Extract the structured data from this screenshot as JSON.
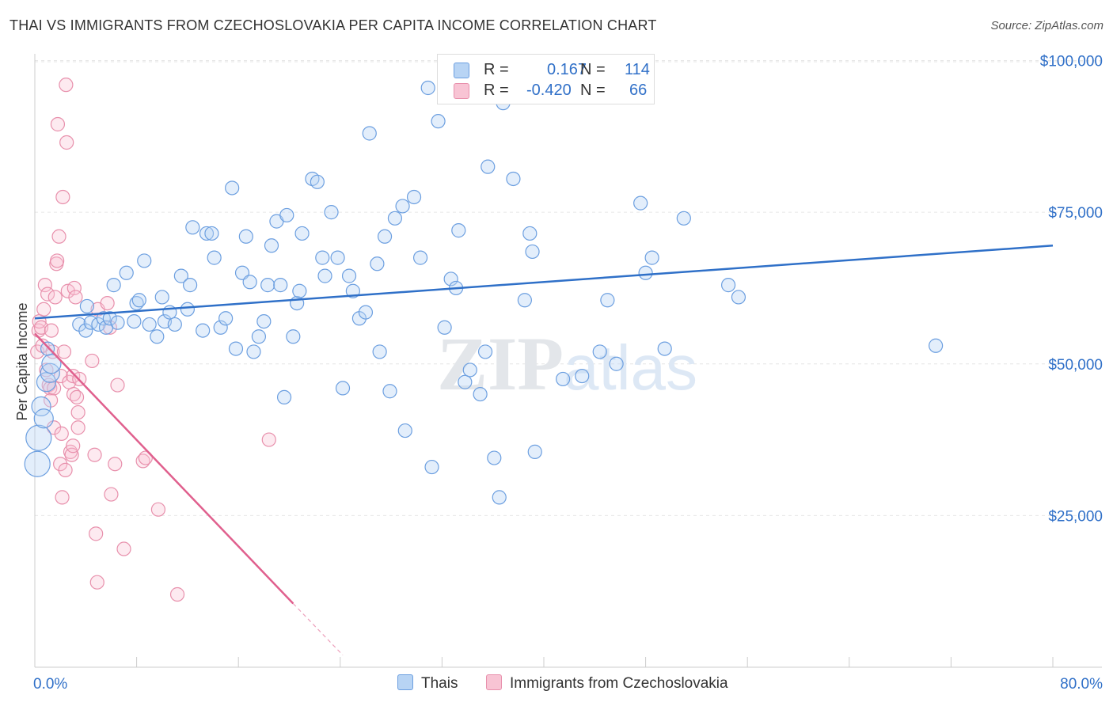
{
  "title": "THAI VS IMMIGRANTS FROM CZECHOSLOVAKIA PER CAPITA INCOME CORRELATION CHART",
  "source": "Source: ZipAtlas.com",
  "watermark": {
    "zip": "ZIP",
    "atlas": "atlas"
  },
  "legend": {
    "r_label": "R =",
    "n_label": "N =",
    "rows": [
      {
        "r": "0.167",
        "n": "114",
        "swatch_fill": "#b8d4f4",
        "swatch_stroke": "#6c9fe0"
      },
      {
        "r": "-0.420",
        "n": "66",
        "swatch_fill": "#f8c4d4",
        "swatch_stroke": "#e890ac"
      }
    ]
  },
  "bottom_legend": [
    "Thais",
    "Immigrants from Czechoslovakia"
  ],
  "chart_data": {
    "type": "scatter",
    "title": "THAI VS IMMIGRANTS FROM CZECHOSLOVAKIA PER CAPITA INCOME CORRELATION CHART",
    "xlabel": "",
    "ylabel": "Per Capita Income",
    "xlim": [
      0,
      80
    ],
    "ylim": [
      0,
      100000
    ],
    "x_tick_labels": [
      "0.0%",
      "80.0%"
    ],
    "y_tick_labels": [
      "$25,000",
      "$50,000",
      "$75,000",
      "$100,000"
    ],
    "y_ticks": [
      25000,
      50000,
      75000,
      100000
    ],
    "colors": {
      "thais": "#6c9fe0",
      "thais_line": "#2f70c8",
      "czech": "#e890ac",
      "czech_line": "#e0608e",
      "axis_text": "#3070c8"
    },
    "series": [
      {
        "name": "Thais",
        "trend": {
          "x0": 0,
          "y0": 57500,
          "x1": 80,
          "y1": 69500
        },
        "points": [
          [
            0.2,
            33500
          ],
          [
            0.3,
            37800
          ],
          [
            0.5,
            43000
          ],
          [
            0.7,
            41000
          ],
          [
            0.9,
            47000
          ],
          [
            1.0,
            52500
          ],
          [
            1.2,
            48500
          ],
          [
            1.3,
            50000
          ],
          [
            3.5,
            56500
          ],
          [
            4.0,
            55500
          ],
          [
            4.1,
            59500
          ],
          [
            4.4,
            56800
          ],
          [
            5.0,
            56500
          ],
          [
            5.4,
            57500
          ],
          [
            5.6,
            56000
          ],
          [
            5.9,
            57500
          ],
          [
            6.2,
            63000
          ],
          [
            6.5,
            56800
          ],
          [
            7.2,
            65000
          ],
          [
            7.8,
            57000
          ],
          [
            8.0,
            60000
          ],
          [
            8.2,
            60500
          ],
          [
            8.6,
            67000
          ],
          [
            9.0,
            56500
          ],
          [
            9.6,
            54500
          ],
          [
            10.0,
            61000
          ],
          [
            10.2,
            57000
          ],
          [
            10.6,
            58500
          ],
          [
            11.0,
            56500
          ],
          [
            11.5,
            64500
          ],
          [
            12.0,
            59000
          ],
          [
            12.2,
            63000
          ],
          [
            12.4,
            72500
          ],
          [
            13.2,
            55500
          ],
          [
            13.5,
            71500
          ],
          [
            13.9,
            71500
          ],
          [
            14.1,
            67500
          ],
          [
            14.6,
            56000
          ],
          [
            15.0,
            57500
          ],
          [
            15.5,
            79000
          ],
          [
            15.8,
            52500
          ],
          [
            16.3,
            65000
          ],
          [
            16.6,
            71000
          ],
          [
            16.9,
            63500
          ],
          [
            17.2,
            52000
          ],
          [
            17.6,
            54500
          ],
          [
            18.0,
            57000
          ],
          [
            18.3,
            63000
          ],
          [
            18.6,
            69500
          ],
          [
            19.0,
            73500
          ],
          [
            19.3,
            63000
          ],
          [
            19.6,
            44500
          ],
          [
            19.8,
            74500
          ],
          [
            20.3,
            54500
          ],
          [
            20.6,
            60000
          ],
          [
            20.8,
            62000
          ],
          [
            21.0,
            71500
          ],
          [
            21.8,
            80500
          ],
          [
            22.2,
            80000
          ],
          [
            22.6,
            67500
          ],
          [
            22.8,
            64500
          ],
          [
            23.3,
            75000
          ],
          [
            23.8,
            67500
          ],
          [
            24.2,
            46000
          ],
          [
            24.7,
            64500
          ],
          [
            25.0,
            62000
          ],
          [
            25.5,
            57500
          ],
          [
            26.0,
            58500
          ],
          [
            26.3,
            88000
          ],
          [
            26.9,
            66500
          ],
          [
            27.1,
            52000
          ],
          [
            27.5,
            71000
          ],
          [
            27.9,
            45500
          ],
          [
            28.3,
            74000
          ],
          [
            28.9,
            76000
          ],
          [
            29.1,
            39000
          ],
          [
            29.8,
            77500
          ],
          [
            30.3,
            67500
          ],
          [
            30.9,
            95500
          ],
          [
            31.2,
            33000
          ],
          [
            31.7,
            90000
          ],
          [
            32.2,
            56000
          ],
          [
            32.7,
            64000
          ],
          [
            33.1,
            62500
          ],
          [
            33.3,
            72000
          ],
          [
            33.8,
            47000
          ],
          [
            34.2,
            49000
          ],
          [
            35.0,
            45000
          ],
          [
            35.4,
            52000
          ],
          [
            35.6,
            82500
          ],
          [
            36.1,
            34500
          ],
          [
            36.5,
            28000
          ],
          [
            36.8,
            93000
          ],
          [
            37.6,
            80500
          ],
          [
            38.5,
            60500
          ],
          [
            38.9,
            71500
          ],
          [
            39.1,
            68500
          ],
          [
            39.3,
            35500
          ],
          [
            41.5,
            47500
          ],
          [
            43.0,
            48000
          ],
          [
            44.4,
            52000
          ],
          [
            45.0,
            60500
          ],
          [
            45.7,
            50000
          ],
          [
            47.6,
            76500
          ],
          [
            48.0,
            65000
          ],
          [
            48.5,
            67500
          ],
          [
            49.5,
            52500
          ],
          [
            51.0,
            74000
          ],
          [
            54.5,
            63000
          ],
          [
            55.3,
            61000
          ],
          [
            70.8,
            53000
          ]
        ]
      },
      {
        "name": "Immigrants from Czechoslovakia",
        "trend": {
          "x0": 0,
          "y0": 55000,
          "x1": 20.3,
          "y1": 10500
        },
        "trend_dashed": {
          "x0": 20.3,
          "y0": 10500,
          "x1": 24.2,
          "y1": 2000
        },
        "points": [
          [
            0.2,
            52000
          ],
          [
            0.3,
            55500
          ],
          [
            0.35,
            57000
          ],
          [
            0.5,
            56000
          ],
          [
            0.6,
            53000
          ],
          [
            0.7,
            59000
          ],
          [
            0.8,
            63000
          ],
          [
            0.9,
            49000
          ],
          [
            1.0,
            61500
          ],
          [
            1.1,
            46500
          ],
          [
            1.2,
            46000
          ],
          [
            1.25,
            44000
          ],
          [
            1.3,
            55500
          ],
          [
            1.4,
            52000
          ],
          [
            1.5,
            39500
          ],
          [
            1.5,
            46000
          ],
          [
            1.6,
            61000
          ],
          [
            1.7,
            66500
          ],
          [
            1.75,
            67000
          ],
          [
            1.8,
            89500
          ],
          [
            1.9,
            71000
          ],
          [
            2.0,
            33500
          ],
          [
            2.05,
            48000
          ],
          [
            2.1,
            38500
          ],
          [
            2.15,
            28000
          ],
          [
            2.2,
            77500
          ],
          [
            2.3,
            52000
          ],
          [
            2.4,
            32500
          ],
          [
            2.45,
            96000
          ],
          [
            2.5,
            86500
          ],
          [
            2.6,
            62000
          ],
          [
            2.7,
            47000
          ],
          [
            2.8,
            35500
          ],
          [
            2.9,
            35000
          ],
          [
            3.0,
            36500
          ],
          [
            3.0,
            48000
          ],
          [
            3.05,
            45000
          ],
          [
            3.1,
            62500
          ],
          [
            3.2,
            61000
          ],
          [
            3.3,
            44500
          ],
          [
            3.4,
            42000
          ],
          [
            3.4,
            39500
          ],
          [
            3.5,
            47500
          ],
          [
            4.5,
            50500
          ],
          [
            4.7,
            35000
          ],
          [
            4.8,
            22000
          ],
          [
            4.9,
            14000
          ],
          [
            4.95,
            59000
          ],
          [
            5.7,
            60000
          ],
          [
            5.9,
            56000
          ],
          [
            6.0,
            28500
          ],
          [
            6.3,
            33500
          ],
          [
            6.5,
            46500
          ],
          [
            7.0,
            19500
          ],
          [
            8.5,
            34000
          ],
          [
            8.7,
            34500
          ],
          [
            9.7,
            26000
          ],
          [
            11.2,
            12000
          ],
          [
            18.4,
            37500
          ]
        ]
      }
    ]
  }
}
